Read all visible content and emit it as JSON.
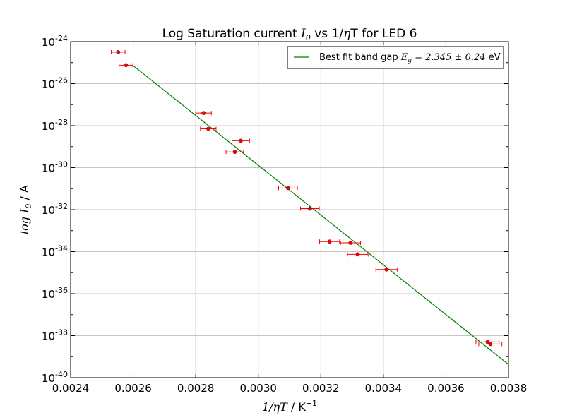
{
  "chart_data": {
    "type": "scatter",
    "title_prefix": "Log Saturation current ",
    "title_math": "I",
    "title_math_sub": "0",
    "title_mid": " vs 1/",
    "title_math2": "η",
    "title_suffix": "T for LED 6",
    "xlabel_math": "1/ηT",
    "xlabel_unit": " / K",
    "xlabel_unit_sup": "−1",
    "ylabel_math": "log I",
    "ylabel_math_sub": "0",
    "ylabel_unit": " / A",
    "x_range": [
      0.0024,
      0.0038
    ],
    "y_range_log10": [
      -40,
      -24
    ],
    "log_scale_y": true,
    "grid": true,
    "x_ticks": [
      "0.0024",
      "0.0026",
      "0.0028",
      "0.0030",
      "0.0032",
      "0.0034",
      "0.0036",
      "0.0038"
    ],
    "y_ticks": [
      {
        "base": "10",
        "exp": "-24"
      },
      {
        "base": "10",
        "exp": "-26"
      },
      {
        "base": "10",
        "exp": "-28"
      },
      {
        "base": "10",
        "exp": "-30"
      },
      {
        "base": "10",
        "exp": "-32"
      },
      {
        "base": "10",
        "exp": "-34"
      },
      {
        "base": "10",
        "exp": "-36"
      },
      {
        "base": "10",
        "exp": "-38"
      },
      {
        "base": "10",
        "exp": "-40"
      }
    ],
    "legend": {
      "placement": "top-right",
      "label_prefix": "Best fit band gap ",
      "label_math": "E",
      "label_math_sub": "g",
      "label_math_rest": " = 2.345 ± 0.24",
      "label_suffix": " eV"
    },
    "series": [
      {
        "kind": "points_with_xerr",
        "color": "#ff0000",
        "points": [
          {
            "x": 0.002552,
            "log10_y": -24.5,
            "xerr": 2.2e-05
          },
          {
            "x": 0.002577,
            "log10_y": -25.12,
            "xerr": 2.2e-05
          },
          {
            "x": 0.002825,
            "log10_y": -27.4,
            "xerr": 2.5e-05
          },
          {
            "x": 0.00284,
            "log10_y": -28.15,
            "xerr": 2.5e-05
          },
          {
            "x": 0.002944,
            "log10_y": -28.72,
            "xerr": 2.8e-05
          },
          {
            "x": 0.002925,
            "log10_y": -29.25,
            "xerr": 2.8e-05
          },
          {
            "x": 0.003095,
            "log10_y": -30.97,
            "xerr": 3e-05
          },
          {
            "x": 0.003165,
            "log10_y": -31.95,
            "xerr": 3e-05
          },
          {
            "x": 0.003228,
            "log10_y": -33.52,
            "xerr": 3.2e-05
          },
          {
            "x": 0.003295,
            "log10_y": -33.58,
            "xerr": 3.2e-05
          },
          {
            "x": 0.003318,
            "log10_y": -34.13,
            "xerr": 3.3e-05
          },
          {
            "x": 0.00341,
            "log10_y": -34.85,
            "xerr": 3.4e-05
          },
          {
            "x": 0.003733,
            "log10_y": -38.3,
            "xerr": 3.7e-05
          },
          {
            "x": 0.003742,
            "log10_y": -38.4,
            "xerr": 3.7e-05
          }
        ]
      },
      {
        "kind": "fit_line",
        "color": "#008000",
        "x": [
          0.002598,
          0.0038
        ],
        "log10_y": [
          -25.12,
          -39.37
        ]
      }
    ]
  }
}
